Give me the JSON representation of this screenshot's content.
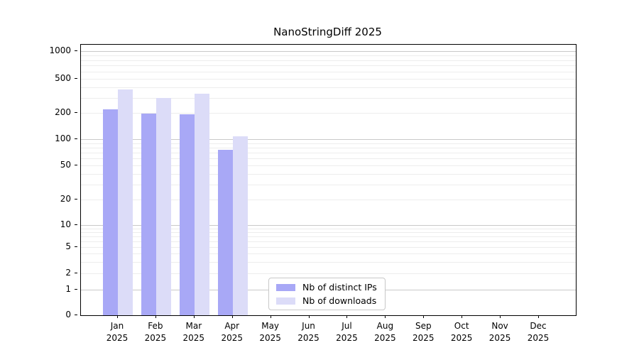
{
  "chart_data": {
    "type": "bar",
    "title": "NanoStringDiff 2025",
    "categories": [
      "Jan",
      "Feb",
      "Mar",
      "Apr",
      "May",
      "Jun",
      "Jul",
      "Aug",
      "Sep",
      "Oct",
      "Nov",
      "Dec"
    ],
    "category_year": "2025",
    "series": [
      {
        "name": "Nb of distinct IPs",
        "color": "#a8a8f6",
        "values": [
          220,
          196,
          192,
          75,
          null,
          null,
          null,
          null,
          null,
          null,
          null,
          null
        ]
      },
      {
        "name": "Nb of downloads",
        "color": "#dcdcf8",
        "values": [
          375,
          300,
          335,
          108,
          null,
          null,
          null,
          null,
          null,
          null,
          null,
          null
        ]
      }
    ],
    "xlabel": "",
    "ylabel": "",
    "y_ticks": [
      0,
      1,
      2,
      5,
      10,
      20,
      50,
      100,
      200,
      500,
      1000
    ],
    "ylim": [
      0,
      1250
    ],
    "yscale": "symlog",
    "grid": "horizontal major and minor, minor log subdivisions",
    "legend_position": "inside bottom-center",
    "colors": {
      "bar_ips": "#a8a8f6",
      "bar_downloads": "#dcdcf8",
      "grid_minor": "#ededed",
      "grid_major": "#c9c9c9",
      "axis": "#000000",
      "background": "#ffffff",
      "legend_border": "#c8c8c8"
    }
  }
}
